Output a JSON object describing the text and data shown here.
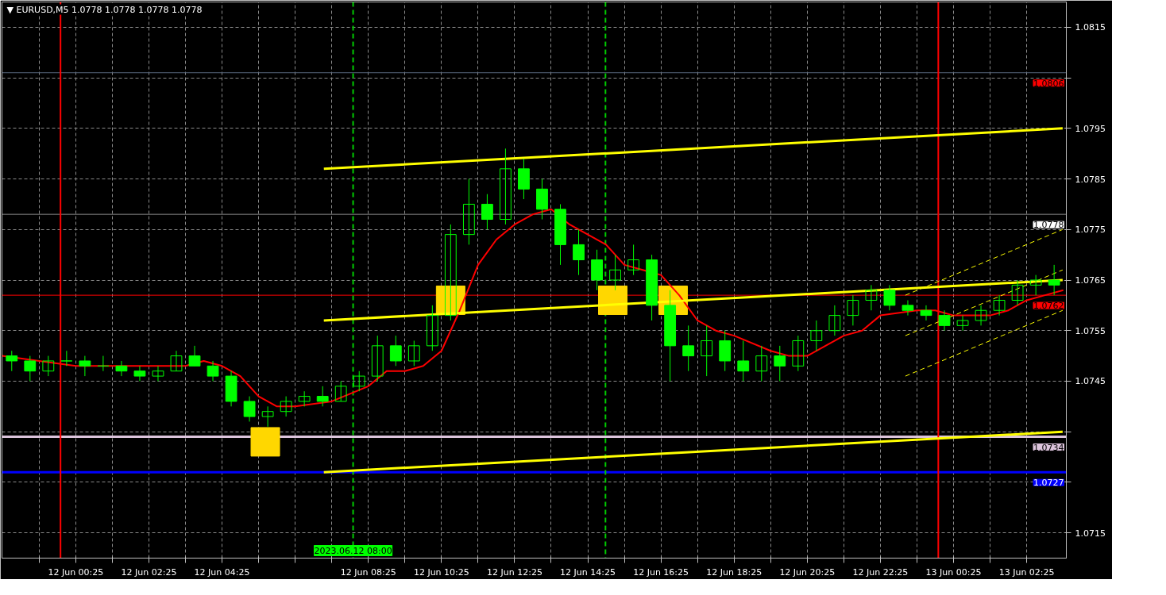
{
  "chart_data": {
    "type": "candlestick",
    "title": "▼ EURUSD,M5  1.0778 1.0778 1.0778 1.0778",
    "color": "#00ff00",
    "x": [
      "2023-06-11T22:40",
      "2023-06-11T23:10",
      "2023-06-11T23:40",
      "2023-06-12T00:10",
      "2023-06-12T00:40",
      "2023-06-12T01:10",
      "2023-06-12T01:40",
      "2023-06-12T02:10",
      "2023-06-12T02:40",
      "2023-06-12T03:10",
      "2023-06-12T03:40",
      "2023-06-12T04:10",
      "2023-06-12T04:40",
      "2023-06-12T05:10",
      "2023-06-12T05:40",
      "2023-06-12T06:10",
      "2023-06-12T06:40",
      "2023-06-12T07:10",
      "2023-06-12T07:40",
      "2023-06-12T08:10",
      "2023-06-12T08:40",
      "2023-06-12T09:10",
      "2023-06-12T09:40",
      "2023-06-12T10:10",
      "2023-06-12T10:40",
      "2023-06-12T11:10",
      "2023-06-12T11:40",
      "2023-06-12T12:10",
      "2023-06-12T12:40",
      "2023-06-12T13:10",
      "2023-06-12T13:40",
      "2023-06-12T14:10",
      "2023-06-12T14:40",
      "2023-06-12T15:10",
      "2023-06-12T15:40",
      "2023-06-12T16:10",
      "2023-06-12T16:40",
      "2023-06-12T17:10",
      "2023-06-12T17:40",
      "2023-06-12T18:10",
      "2023-06-12T18:40",
      "2023-06-12T19:10",
      "2023-06-12T19:40",
      "2023-06-12T20:10",
      "2023-06-12T20:40",
      "2023-06-12T21:10",
      "2023-06-12T21:40",
      "2023-06-12T22:10",
      "2023-06-12T22:40",
      "2023-06-12T23:10",
      "2023-06-12T23:40",
      "2023-06-13T00:10",
      "2023-06-13T00:40",
      "2023-06-13T01:10",
      "2023-06-13T01:40",
      "2023-06-13T02:10",
      "2023-06-13T02:40",
      "2023-06-13T03:10"
    ],
    "ohlc": [
      [
        1.075,
        1.0751,
        1.0747,
        1.0749
      ],
      [
        1.0749,
        1.075,
        1.0745,
        1.0747
      ],
      [
        1.0747,
        1.075,
        1.0746,
        1.0749
      ],
      [
        1.0749,
        1.0751,
        1.0748,
        1.0749
      ],
      [
        1.0749,
        1.075,
        1.0746,
        1.0748
      ],
      [
        1.0748,
        1.075,
        1.0747,
        1.0748
      ],
      [
        1.0748,
        1.0749,
        1.0746,
        1.0747
      ],
      [
        1.0747,
        1.0748,
        1.0745,
        1.0746
      ],
      [
        1.0746,
        1.0748,
        1.0745,
        1.0747
      ],
      [
        1.0747,
        1.0751,
        1.0747,
        1.075
      ],
      [
        1.075,
        1.0752,
        1.0748,
        1.0748
      ],
      [
        1.0748,
        1.0749,
        1.0745,
        1.0746
      ],
      [
        1.0746,
        1.0747,
        1.074,
        1.0741
      ],
      [
        1.0741,
        1.0742,
        1.0737,
        1.0738
      ],
      [
        1.0738,
        1.074,
        1.0736,
        1.0739
      ],
      [
        1.0739,
        1.0742,
        1.0738,
        1.0741
      ],
      [
        1.0741,
        1.0743,
        1.074,
        1.0742
      ],
      [
        1.0742,
        1.0744,
        1.074,
        1.0741
      ],
      [
        1.0741,
        1.0745,
        1.0741,
        1.0744
      ],
      [
        1.0744,
        1.0747,
        1.0743,
        1.0746
      ],
      [
        1.0746,
        1.0754,
        1.0745,
        1.0752
      ],
      [
        1.0752,
        1.0754,
        1.0748,
        1.0749
      ],
      [
        1.0749,
        1.0753,
        1.0748,
        1.0752
      ],
      [
        1.0752,
        1.076,
        1.0751,
        1.0758
      ],
      [
        1.0758,
        1.0776,
        1.0757,
        1.0774
      ],
      [
        1.0774,
        1.0785,
        1.0772,
        1.078
      ],
      [
        1.078,
        1.0782,
        1.0775,
        1.0777
      ],
      [
        1.0777,
        1.0791,
        1.0776,
        1.0787
      ],
      [
        1.0787,
        1.0789,
        1.0781,
        1.0783
      ],
      [
        1.0783,
        1.0785,
        1.0777,
        1.0779
      ],
      [
        1.0779,
        1.078,
        1.0768,
        1.0772
      ],
      [
        1.0772,
        1.0775,
        1.0766,
        1.0769
      ],
      [
        1.0769,
        1.0771,
        1.0763,
        1.0765
      ],
      [
        1.0765,
        1.077,
        1.0763,
        1.0767
      ],
      [
        1.0767,
        1.0772,
        1.0766,
        1.0769
      ],
      [
        1.0769,
        1.077,
        1.0757,
        1.076
      ],
      [
        1.076,
        1.0763,
        1.0745,
        1.0752
      ],
      [
        1.0752,
        1.0756,
        1.0747,
        1.075
      ],
      [
        1.075,
        1.0756,
        1.0746,
        1.0753
      ],
      [
        1.0753,
        1.0755,
        1.0747,
        1.0749
      ],
      [
        1.0749,
        1.0753,
        1.0745,
        1.0747
      ],
      [
        1.0747,
        1.0752,
        1.0745,
        1.075
      ],
      [
        1.075,
        1.0752,
        1.0745,
        1.0748
      ],
      [
        1.0748,
        1.0754,
        1.0747,
        1.0753
      ],
      [
        1.0753,
        1.0757,
        1.0751,
        1.0755
      ],
      [
        1.0755,
        1.076,
        1.0754,
        1.0758
      ],
      [
        1.0758,
        1.0762,
        1.0756,
        1.0761
      ],
      [
        1.0761,
        1.0764,
        1.0759,
        1.0763
      ],
      [
        1.0763,
        1.0764,
        1.0759,
        1.076
      ],
      [
        1.076,
        1.0761,
        1.0758,
        1.0759
      ],
      [
        1.0759,
        1.076,
        1.0757,
        1.0758
      ],
      [
        1.0758,
        1.0759,
        1.0755,
        1.0756
      ],
      [
        1.0756,
        1.0758,
        1.0755,
        1.0757
      ],
      [
        1.0757,
        1.076,
        1.0756,
        1.0759
      ],
      [
        1.0759,
        1.0762,
        1.0758,
        1.0761
      ],
      [
        1.0761,
        1.0765,
        1.076,
        1.0764
      ],
      [
        1.0764,
        1.0766,
        1.0762,
        1.0765
      ],
      [
        1.0765,
        1.0768,
        1.0762,
        1.0764
      ]
    ],
    "series": [
      {
        "type": "line",
        "color": "#ff0000",
        "x": [
          "2023-06-11T22:24",
          "2023-06-11T23:25",
          "2023-06-12T00:25",
          "2023-06-12T01:25",
          "2023-06-12T02:25",
          "2023-06-12T03:25",
          "2023-06-12T03:55",
          "2023-06-12T04:25",
          "2023-06-12T04:55",
          "2023-06-12T05:25",
          "2023-06-12T05:55",
          "2023-06-12T06:25",
          "2023-06-12T07:25",
          "2023-06-12T08:25",
          "2023-06-12T08:55",
          "2023-06-12T09:25",
          "2023-06-12T09:55",
          "2023-06-12T10:25",
          "2023-06-12T10:55",
          "2023-06-12T11:25",
          "2023-06-12T11:55",
          "2023-06-12T12:25",
          "2023-06-12T12:55",
          "2023-06-12T13:25",
          "2023-06-12T13:55",
          "2023-06-12T14:25",
          "2023-06-12T14:55",
          "2023-06-12T15:25",
          "2023-06-12T15:55",
          "2023-06-12T16:25",
          "2023-06-12T16:55",
          "2023-06-12T17:25",
          "2023-06-12T17:55",
          "2023-06-12T18:25",
          "2023-06-12T19:25",
          "2023-06-12T19:55",
          "2023-06-12T20:25",
          "2023-06-12T20:55",
          "2023-06-12T21:25",
          "2023-06-12T21:55",
          "2023-06-12T22:25",
          "2023-06-12T23:25",
          "2023-06-12T23:55",
          "2023-06-13T00:25",
          "2023-06-13T00:55",
          "2023-06-13T01:25",
          "2023-06-13T01:55",
          "2023-06-13T02:25",
          "2023-06-13T02:55",
          "2023-06-13T03:25"
        ],
        "values": [
          1.075,
          1.0749,
          1.0748,
          1.0748,
          1.0748,
          1.0748,
          1.0749,
          1.0748,
          1.0746,
          1.0742,
          1.074,
          1.074,
          1.0741,
          1.0744,
          1.0747,
          1.0747,
          1.0748,
          1.0751,
          1.0759,
          1.0768,
          1.0773,
          1.0776,
          1.0778,
          1.0779,
          1.0776,
          1.0774,
          1.0772,
          1.0768,
          1.0767,
          1.0766,
          1.0762,
          1.0757,
          1.0755,
          1.0754,
          1.0751,
          1.075,
          1.075,
          1.0752,
          1.0754,
          1.0755,
          1.0758,
          1.0759,
          1.0759,
          1.0758,
          1.0758,
          1.0758,
          1.0759,
          1.0761,
          1.0762,
          1.0763
        ]
      },
      {
        "type": "line",
        "color": "#ffff00",
        "x": [
          "2023-06-12T07:12",
          "2023-06-13T03:24"
        ],
        "values": [
          1.0787,
          1.0795
        ]
      },
      {
        "type": "line",
        "color": "#ffff00",
        "x": [
          "2023-06-12T07:12",
          "2023-06-13T03:24"
        ],
        "values": [
          1.0757,
          1.0765
        ]
      },
      {
        "type": "line",
        "color": "#ffff00",
        "x": [
          "2023-06-12T07:12",
          "2023-06-13T03:24"
        ],
        "values": [
          1.0727,
          1.0735
        ]
      },
      {
        "type": "line",
        "color": "#ffff00",
        "line_style": "dashed",
        "x": [
          "2023-06-12T23:06",
          "2023-06-13T03:24"
        ],
        "values": [
          1.0762,
          1.0775
        ]
      },
      {
        "type": "line",
        "color": "#ffff00",
        "line_style": "dashed",
        "x": [
          "2023-06-12T23:06",
          "2023-06-13T03:24"
        ],
        "values": [
          1.0754,
          1.0767
        ]
      },
      {
        "type": "line",
        "color": "#ffff00",
        "line_style": "dashed",
        "x": [
          "2023-06-12T23:06",
          "2023-06-13T03:24"
        ],
        "values": [
          1.0746,
          1.0759
        ]
      },
      {
        "type": "scatter",
        "color": "#ffd700",
        "marker": "square",
        "x": [
          "2023-06-12T05:36",
          "2023-06-12T10:40",
          "2023-06-12T15:06",
          "2023-06-12T16:45"
        ],
        "values": [
          1.0733,
          1.0761,
          1.0761,
          1.0761
        ]
      }
    ],
    "xlim": [
      "2023-06-11T22:24",
      "2023-06-13T03:30"
    ],
    "ylim": [
      1.071,
      1.082
    ],
    "xticks": [
      {
        "value": "2023-06-11T23:25",
        "label": null
      },
      {
        "value": "2023-06-12T00:25",
        "label": "12 Jun 00:25"
      },
      {
        "value": "2023-06-12T01:25",
        "label": null
      },
      {
        "value": "2023-06-12T02:25",
        "label": "12 Jun 02:25"
      },
      {
        "value": "2023-06-12T03:25",
        "label": null
      },
      {
        "value": "2023-06-12T04:25",
        "label": "12 Jun 04:25"
      },
      {
        "value": "2023-06-12T05:25",
        "label": null
      },
      {
        "value": "2023-06-12T06:25",
        "label": null
      },
      {
        "value": "2023-06-12T07:25",
        "label": null
      },
      {
        "value": "2023-06-12T08:25",
        "label": "12 Jun 08:25"
      },
      {
        "value": "2023-06-12T09:25",
        "label": null
      },
      {
        "value": "2023-06-12T10:25",
        "label": "12 Jun 10:25"
      },
      {
        "value": "2023-06-12T11:25",
        "label": null
      },
      {
        "value": "2023-06-12T12:25",
        "label": "12 Jun 12:25"
      },
      {
        "value": "2023-06-12T13:25",
        "label": null
      },
      {
        "value": "2023-06-12T14:25",
        "label": "12 Jun 14:25"
      },
      {
        "value": "2023-06-12T15:25",
        "label": null
      },
      {
        "value": "2023-06-12T16:25",
        "label": "12 Jun 16:25"
      },
      {
        "value": "2023-06-12T17:25",
        "label": null
      },
      {
        "value": "2023-06-12T18:25",
        "label": "12 Jun 18:25"
      },
      {
        "value": "2023-06-12T19:25",
        "label": null
      },
      {
        "value": "2023-06-12T20:25",
        "label": "12 Jun 20:25"
      },
      {
        "value": "2023-06-12T21:25",
        "label": null
      },
      {
        "value": "2023-06-12T22:25",
        "label": "12 Jun 22:25"
      },
      {
        "value": "2023-06-12T23:25",
        "label": null
      },
      {
        "value": "2023-06-13T00:25",
        "label": "13 Jun 00:25"
      },
      {
        "value": "2023-06-13T01:25",
        "label": null
      },
      {
        "value": "2023-06-13T02:25",
        "label": "13 Jun 02:25"
      }
    ],
    "yticks": [
      {
        "value": 1.0715,
        "label": "1.0715"
      },
      {
        "value": 1.0725,
        "label": null
      },
      {
        "value": 1.0735,
        "label": null
      },
      {
        "value": 1.0745,
        "label": "1.0745"
      },
      {
        "value": 1.0755,
        "label": "1.0755"
      },
      {
        "value": 1.0765,
        "label": "1.0765"
      },
      {
        "value": 1.0775,
        "label": "1.0775"
      },
      {
        "value": 1.0785,
        "label": "1.0785"
      },
      {
        "value": 1.0795,
        "label": "1.0795"
      },
      {
        "value": 1.0805,
        "label": null
      },
      {
        "value": 1.0815,
        "label": "1.0815"
      }
    ],
    "grid": true,
    "ref_lines": [
      {
        "axis": "y",
        "value": 1.0806,
        "label": "1.0806",
        "color": "#5a6a80"
      },
      {
        "axis": "y",
        "value": 1.0778,
        "label": "1.0778",
        "color": "#8a8a8a"
      },
      {
        "axis": "y",
        "value": 1.0762,
        "label": "1.0762",
        "color": "#ff0000"
      },
      {
        "axis": "y",
        "value": 1.0734,
        "label": "1.0734",
        "color": "#dcc4dc"
      },
      {
        "axis": "y",
        "value": 1.0727,
        "label": "1.0727",
        "color": "#0000ff"
      },
      {
        "axis": "x",
        "value": "2023-06-12T00:00",
        "color": "#ff0000"
      },
      {
        "axis": "x",
        "value": "2023-06-13T00:00",
        "color": "#ff0000"
      },
      {
        "axis": "x",
        "value": "2023-06-12T08:00",
        "color": "#00cc00",
        "line_style": "dashed"
      },
      {
        "axis": "x",
        "value": "2023-06-12T14:54",
        "color": "#00cc00",
        "line_style": "dashed"
      }
    ],
    "annotations": [
      {
        "text": "2023.06.12 08:00",
        "x": "2023-06-12T08:00"
      }
    ]
  }
}
